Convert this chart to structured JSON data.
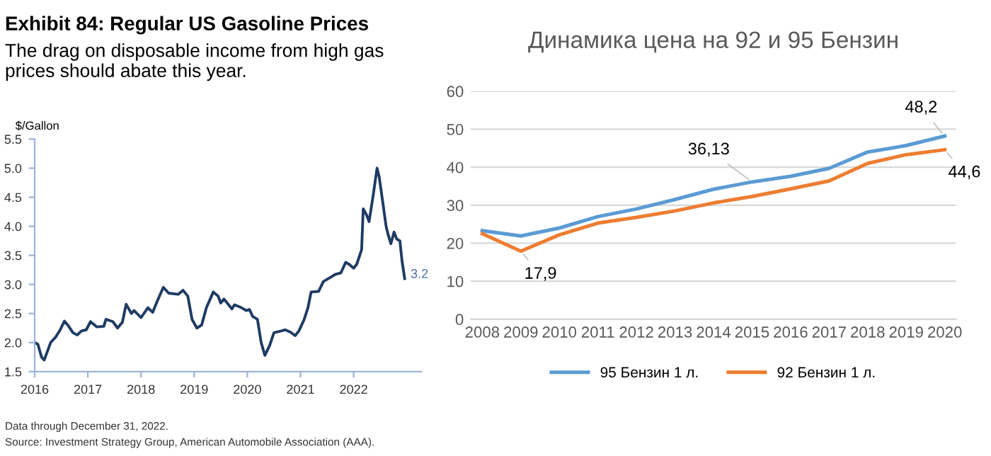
{
  "chart_data": [
    {
      "type": "line",
      "title": "Exhibit 84: Regular US Gasoline Prices",
      "subtitle": "The drag on disposable income from high gas prices should abate this year.",
      "ylabel": "$/Gallon",
      "x": [
        2016.0,
        2016.06,
        2016.13,
        2016.18,
        2016.24,
        2016.3,
        2016.4,
        2016.48,
        2016.56,
        2016.64,
        2016.72,
        2016.8,
        2016.88,
        2016.97,
        2017.05,
        2017.17,
        2017.3,
        2017.34,
        2017.47,
        2017.56,
        2017.65,
        2017.72,
        2017.82,
        2017.87,
        2018.0,
        2018.13,
        2018.22,
        2018.3,
        2018.42,
        2018.52,
        2018.7,
        2018.79,
        2018.88,
        2018.96,
        2019.05,
        2019.14,
        2019.23,
        2019.36,
        2019.45,
        2019.5,
        2019.56,
        2019.71,
        2019.76,
        2019.89,
        2019.98,
        2020.04,
        2020.1,
        2020.19,
        2020.26,
        2020.33,
        2020.42,
        2020.5,
        2020.64,
        2020.71,
        2020.81,
        2020.9,
        2020.97,
        2021.07,
        2021.14,
        2021.2,
        2021.34,
        2021.43,
        2021.56,
        2021.65,
        2021.76,
        2021.85,
        2021.91,
        2022.0,
        2022.06,
        2022.15,
        2022.18,
        2022.24,
        2022.29,
        2022.37,
        2022.44,
        2022.48,
        2022.55,
        2022.61,
        2022.65,
        2022.7,
        2022.76,
        2022.81,
        2022.87,
        2022.91,
        2022.96
      ],
      "series": [
        {
          "color": "#1f3b63",
          "values": [
            2.0,
            1.97,
            1.75,
            1.7,
            1.85,
            2.0,
            2.1,
            2.22,
            2.37,
            2.28,
            2.17,
            2.13,
            2.2,
            2.22,
            2.36,
            2.27,
            2.28,
            2.4,
            2.36,
            2.25,
            2.35,
            2.66,
            2.5,
            2.55,
            2.43,
            2.6,
            2.52,
            2.7,
            2.95,
            2.85,
            2.83,
            2.9,
            2.8,
            2.4,
            2.25,
            2.3,
            2.6,
            2.87,
            2.8,
            2.68,
            2.75,
            2.58,
            2.65,
            2.6,
            2.55,
            2.57,
            2.45,
            2.4,
            2.0,
            1.78,
            1.95,
            2.17,
            2.2,
            2.22,
            2.18,
            2.12,
            2.2,
            2.4,
            2.6,
            2.87,
            2.88,
            3.05,
            3.12,
            3.17,
            3.2,
            3.38,
            3.35,
            3.28,
            3.35,
            3.6,
            4.3,
            4.2,
            4.08,
            4.55,
            5.0,
            4.85,
            4.4,
            4.0,
            3.85,
            3.7,
            3.9,
            3.78,
            3.75,
            3.4,
            3.1
          ]
        }
      ],
      "xlim": [
        2016,
        2023.27
      ],
      "xticks": [
        2016,
        2017,
        2018,
        2019,
        2020,
        2021,
        2022
      ],
      "ylim": [
        1.5,
        5.5
      ],
      "yticks": [
        1.5,
        {
          "value": 2,
          "label": "2.0"
        },
        2.5,
        {
          "value": 3,
          "label": "3.0"
        },
        3.5,
        {
          "value": 4,
          "label": "4.0"
        },
        4.5,
        {
          "value": 5,
          "label": "5.0"
        },
        5.5
      ],
      "grid": false,
      "legend": false,
      "annotations": [
        {
          "text": "3.2",
          "x": 2022.96,
          "y": 3.1
        },
        "Data through December 31, 2022.",
        "Source: Investment Strategy Group, American Automobile Association (AAA)."
      ]
    },
    {
      "type": "line",
      "title": "Динамика цена на 92 и 95 Бензин",
      "categories": [
        "2008",
        "2009",
        "2010",
        "2011",
        "2012",
        "2013",
        "2014",
        "2015",
        "2016",
        "2017",
        "2018",
        "2019",
        "2020"
      ],
      "series": [
        {
          "name": "95 Бензин 1 л.",
          "color": "#5b9bd5",
          "values": [
            23.3,
            21.9,
            24.0,
            27.0,
            29.0,
            31.5,
            34.2,
            36.13,
            37.6,
            39.7,
            44.0,
            45.7,
            48.2
          ]
        },
        {
          "name": "92 Бензин 1 л.",
          "color": "#ed7d31",
          "values": [
            22.5,
            17.9,
            22.2,
            25.3,
            26.8,
            28.5,
            30.6,
            32.3,
            34.3,
            36.4,
            41.0,
            43.3,
            44.6
          ]
        }
      ],
      "ylim": [
        0,
        60
      ],
      "yticks": [
        0,
        10,
        20,
        30,
        40,
        50,
        60
      ],
      "grid": "y",
      "legend": "bottom",
      "annotations": [
        {
          "text": "17,9",
          "x": "2009",
          "y": 17.9
        },
        {
          "text": "36,13",
          "x": "2015",
          "y": 36.13
        },
        {
          "text": "48,2",
          "x": "2020",
          "y": 48.2
        },
        {
          "text": "44,6",
          "x": "2020",
          "y": 44.6
        }
      ]
    }
  ]
}
